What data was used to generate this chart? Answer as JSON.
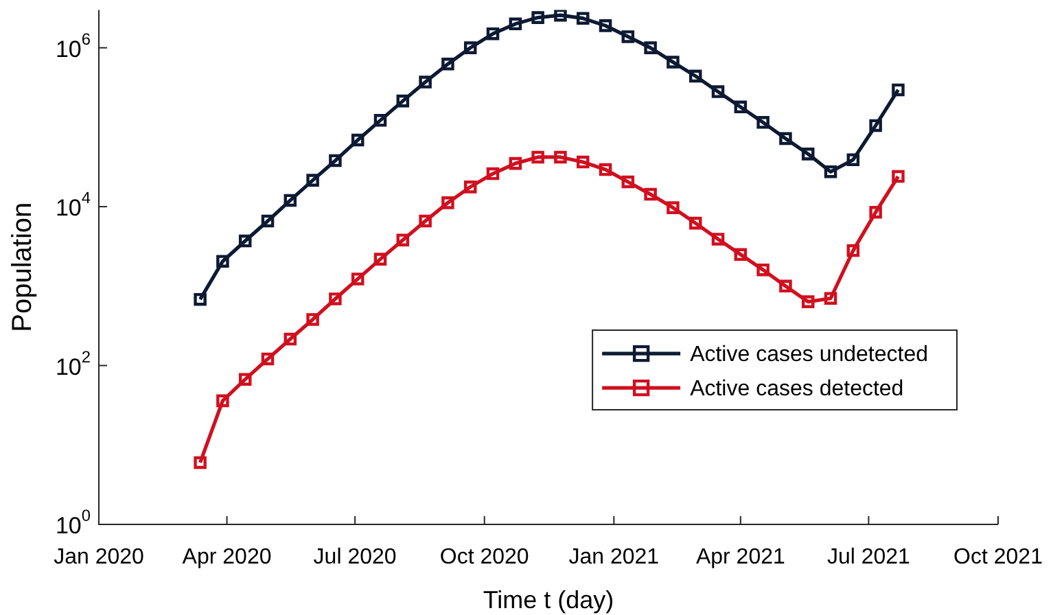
{
  "chart_data": {
    "type": "line",
    "xlabel": "Time t (day)",
    "ylabel": "Population",
    "log": "y",
    "grid": false,
    "legend": "right",
    "marker": "square",
    "line_style": "solid",
    "x": [
      "2020-03-13",
      "2020-03-29",
      "2020-04-14",
      "2020-04-30",
      "2020-05-16",
      "2020-06-01",
      "2020-06-17",
      "2020-07-03",
      "2020-07-19",
      "2020-08-04",
      "2020-08-20",
      "2020-09-05",
      "2020-09-21",
      "2020-10-07",
      "2020-10-23",
      "2020-11-08",
      "2020-11-24",
      "2020-12-10",
      "2020-12-26",
      "2021-01-11",
      "2021-01-27",
      "2021-02-12",
      "2021-02-28",
      "2021-03-16",
      "2021-04-01",
      "2021-04-17",
      "2021-05-03",
      "2021-05-19",
      "2021-06-04",
      "2021-06-20",
      "2021-07-06",
      "2021-07-22"
    ],
    "series": [
      {
        "name": "Active cases undetected",
        "color": "#0d1a33",
        "values": [
          680,
          2050,
          3700,
          6600,
          12000,
          21500,
          38000,
          69000,
          122000,
          214000,
          370000,
          624000,
          1000000,
          1500000,
          2000000,
          2400000,
          2570000,
          2350000,
          1900000,
          1380000,
          1000000,
          660000,
          440000,
          280000,
          180000,
          115000,
          72000,
          46000,
          27500,
          39000,
          105000,
          295000
        ]
      },
      {
        "name": "Active cases detected",
        "color": "#d0101f",
        "values": [
          6,
          36,
          67,
          121,
          215,
          380,
          690,
          1230,
          2180,
          3800,
          6600,
          11200,
          17700,
          26000,
          35000,
          42000,
          42000,
          36500,
          29300,
          20500,
          14300,
          9700,
          6200,
          3900,
          2500,
          1600,
          1000,
          635,
          700,
          2800,
          8500,
          24000
        ]
      }
    ],
    "xlim": [
      "2020-01-01",
      "2021-10-01"
    ],
    "xticks": [
      {
        "value": "2020-01-01",
        "label": "Jan 2020"
      },
      {
        "value": "2020-04-01",
        "label": "Apr 2020"
      },
      {
        "value": "2020-07-01",
        "label": "Jul 2020"
      },
      {
        "value": "2020-10-01",
        "label": "Oct 2020"
      },
      {
        "value": "2021-01-01",
        "label": "Jan 2021"
      },
      {
        "value": "2021-04-01",
        "label": "Apr 2021"
      },
      {
        "value": "2021-07-01",
        "label": "Jul 2021"
      },
      {
        "value": "2021-10-01",
        "label": "Oct 2021"
      }
    ],
    "ylim": [
      1,
      3000000
    ],
    "yticks": [
      {
        "value": 1,
        "label": "10$^{0}$"
      },
      {
        "value": 100,
        "label": "10$^{2}$"
      },
      {
        "value": 10000,
        "label": "10$^{4}$"
      },
      {
        "value": 1000000,
        "label": "10$^{6}$"
      }
    ]
  }
}
